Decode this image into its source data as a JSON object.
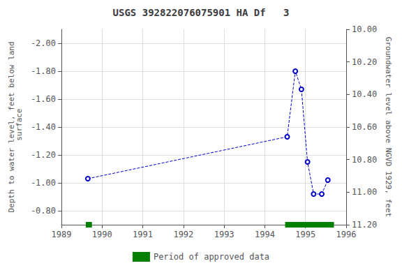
{
  "chart_data": {
    "type": "line",
    "title": "USGS 392822076075901 HA Df   3",
    "ylabel": "Depth to water level, feet below land\n surface",
    "y2label": "Groundwater level above NGVD 1929, feet",
    "x": [
      1989.65,
      1994.55,
      1994.75,
      1994.9,
      1995.05,
      1995.2,
      1995.4,
      1995.55
    ],
    "values": [
      -1.03,
      -1.33,
      -1.8,
      -1.67,
      -1.15,
      -0.92,
      -0.92,
      -1.02
    ],
    "color": "#0000CC",
    "marker": "circle",
    "line_style": "dashed",
    "xlim": [
      1989,
      1996
    ],
    "xticks": [
      1989,
      1990,
      1991,
      1992,
      1993,
      1994,
      1995,
      1996
    ],
    "ylim": [
      -2.1,
      -0.7
    ],
    "yticks": [
      {
        "value": -2.0,
        "label": "-2.00"
      },
      {
        "value": -1.8,
        "label": "-1.80"
      },
      {
        "value": -1.6,
        "label": "-1.60"
      },
      {
        "value": -1.4,
        "label": "-1.40"
      },
      {
        "value": -1.2,
        "label": "-1.20"
      },
      {
        "value": -1.0,
        "label": "-1.00"
      },
      {
        "value": -0.8,
        "label": "-0.80"
      }
    ],
    "y2lim": [
      10.0,
      11.2
    ],
    "y2ticks": [
      {
        "value": 10.0,
        "label": "10.00"
      },
      {
        "value": 10.2,
        "label": "10.20"
      },
      {
        "value": 10.4,
        "label": "10.40"
      },
      {
        "value": 10.6,
        "label": "10.60"
      },
      {
        "value": 10.8,
        "label": "10.80"
      },
      {
        "value": 11.0,
        "label": "11.00"
      },
      {
        "value": 11.2,
        "label": "11.20"
      }
    ],
    "inverted": true,
    "grid": true,
    "legend": "bottom",
    "approved_periods": {
      "name": "Period of approved data",
      "color": "#008000",
      "ranges": [
        [
          1989.6,
          1989.75
        ],
        [
          1994.5,
          1995.7
        ]
      ]
    }
  }
}
